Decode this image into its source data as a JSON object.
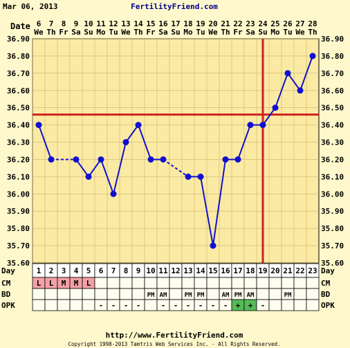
{
  "header": {
    "date": "Mar 06, 2013",
    "site": "FertilityFriend.com"
  },
  "row_labels": {
    "date": "Date",
    "day": "Day",
    "cm": "CM",
    "bd": "BD",
    "opk": "OPK"
  },
  "footer": {
    "url": "http://www.FertilityFriend.com",
    "copyright": "Copyright 1998-2013 Tamtris Web Services Inc. - All Rights Reserved."
  },
  "colors": {
    "background": "#fff8cc",
    "plot": "#fbeaa3",
    "grid": "#c8b36a",
    "line": "#1010d0",
    "marker": "#1010d0",
    "coverline": "#d02020",
    "cm_box": "#f4a0a8",
    "opk_positive": "#55bb55"
  },
  "chart_data": {
    "type": "line",
    "ylim": [
      35.6,
      36.9
    ],
    "yticks": [
      "35.60",
      "35.70",
      "35.80",
      "35.90",
      "36.00",
      "36.10",
      "36.20",
      "36.30",
      "36.40",
      "36.50",
      "36.60",
      "36.70",
      "36.80",
      "36.90"
    ],
    "dates": [
      "6",
      "7",
      "8",
      "9",
      "10",
      "11",
      "12",
      "13",
      "14",
      "15",
      "16",
      "17",
      "18",
      "19",
      "20",
      "21",
      "22",
      "23",
      "24",
      "25",
      "26",
      "27",
      "28"
    ],
    "weekdays": [
      "We",
      "Th",
      "Fr",
      "Sa",
      "Su",
      "Mo",
      "Tu",
      "We",
      "Th",
      "Fr",
      "Sa",
      "Su",
      "Mo",
      "Tu",
      "We",
      "Th",
      "Fr",
      "Sa",
      "Su",
      "Mo",
      "Tu",
      "We",
      "Th"
    ],
    "days": [
      1,
      2,
      3,
      4,
      5,
      6,
      7,
      8,
      9,
      10,
      11,
      12,
      13,
      14,
      15,
      16,
      17,
      18,
      19,
      20,
      21,
      22,
      23
    ],
    "temps": [
      36.4,
      36.2,
      null,
      36.2,
      36.1,
      36.2,
      36.0,
      36.3,
      36.4,
      36.2,
      36.2,
      null,
      36.1,
      36.1,
      35.7,
      36.2,
      36.2,
      36.4,
      36.4,
      36.5,
      36.7,
      36.6,
      36.8
    ],
    "coverline": 36.46,
    "ovulation_day": 19,
    "cm": [
      "L",
      "L",
      "M",
      "M",
      "L",
      "",
      "",
      "",
      "",
      "",
      "",
      "",
      "",
      "",
      "",
      "",
      "",
      "",
      "",
      "",
      "",
      "",
      ""
    ],
    "bd": [
      "",
      "",
      "",
      "",
      "",
      "",
      "",
      "",
      "",
      "PM",
      "AM",
      "",
      "PM",
      "PM",
      "",
      "AM",
      "PM",
      "AM",
      "",
      "",
      "PM",
      "",
      ""
    ],
    "opk": [
      "",
      "",
      "",
      "",
      "",
      "-",
      "-",
      "-",
      "-",
      "",
      "-",
      "-",
      "-",
      "-",
      "-",
      "-",
      "+",
      "+",
      "-",
      "",
      "",
      "",
      ""
    ]
  }
}
